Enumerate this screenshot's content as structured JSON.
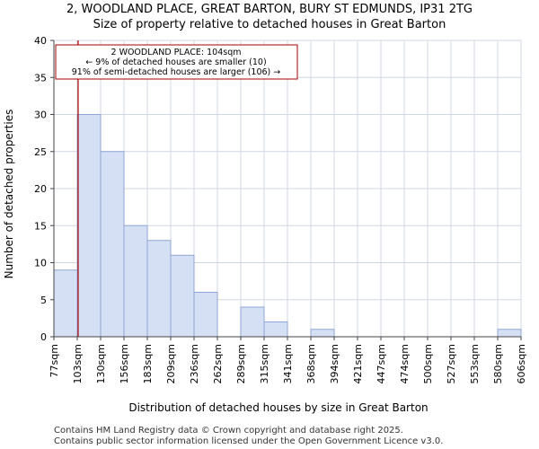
{
  "chart_data": {
    "type": "bar",
    "title": "2, WOODLAND PLACE, GREAT BARTON, BURY ST EDMUNDS, IP31 2TG",
    "subtitle": "Size of property relative to detached houses in Great Barton",
    "xlabel": "Distribution of detached houses by size in Great Barton",
    "ylabel": "Number of detached properties",
    "ylim": [
      0,
      40
    ],
    "yticks": [
      0,
      5,
      10,
      15,
      20,
      25,
      30,
      35,
      40
    ],
    "bin_edges": [
      "77sqm",
      "103sqm",
      "130sqm",
      "156sqm",
      "183sqm",
      "209sqm",
      "236sqm",
      "262sqm",
      "289sqm",
      "315sqm",
      "341sqm",
      "368sqm",
      "394sqm",
      "421sqm",
      "447sqm",
      "474sqm",
      "500sqm",
      "527sqm",
      "553sqm",
      "580sqm",
      "606sqm"
    ],
    "values": [
      9,
      30,
      25,
      15,
      13,
      11,
      6,
      0,
      4,
      2,
      0,
      1,
      0,
      0,
      0,
      0,
      0,
      0,
      0,
      1
    ],
    "grid": true,
    "bar_color": "#d6e0f5",
    "bar_edge_color": "#8ea6d6",
    "marker": {
      "value": 104,
      "color": "#aa0000",
      "label_color": "#aa0000"
    },
    "annotation": {
      "lines": [
        "2 WOODLAND PLACE: 104sqm",
        "← 9% of detached houses are smaller (10)",
        "91% of semi-detached houses are larger (106) →"
      ]
    }
  },
  "footer": {
    "line1": "Contains HM Land Registry data © Crown copyright and database right 2025.",
    "line2": "Contains public sector information licensed under the Open Government Licence v3.0."
  }
}
